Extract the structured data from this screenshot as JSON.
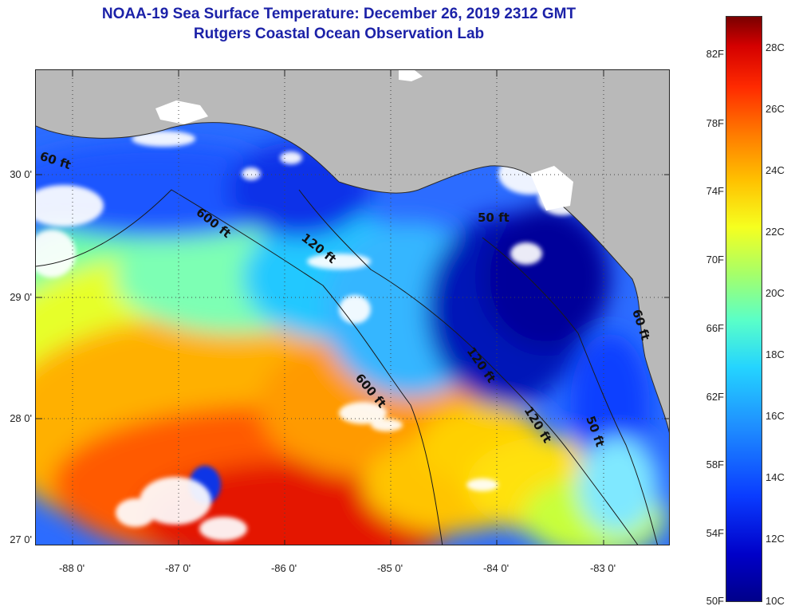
{
  "header": {
    "title_line1": "NOAA-19 Sea Surface Temperature:  December 26, 2019 2312 GMT",
    "title_line2": "Rutgers Coastal Ocean Observation Lab"
  },
  "map": {
    "region": "Gulf of Mexico / Florida Big Bend",
    "lat_ticks": [
      {
        "label": "30 0'",
        "value": 30.0
      },
      {
        "label": "29 0'",
        "value": 29.0
      },
      {
        "label": "28 0'",
        "value": 28.0
      },
      {
        "label": "27 0'",
        "value": 27.0
      }
    ],
    "lon_ticks": [
      {
        "label": "-88 0'",
        "value": -88.0
      },
      {
        "label": "-87 0'",
        "value": -87.0
      },
      {
        "label": "-86 0'",
        "value": -86.0
      },
      {
        "label": "-85 0'",
        "value": -85.0
      },
      {
        "label": "-84 0'",
        "value": -84.0
      },
      {
        "label": "-83 0'",
        "value": -83.0
      }
    ],
    "lat_range": [
      26.97,
      30.9
    ],
    "lon_range": [
      -88.35,
      -82.45
    ],
    "contour_labels": [
      "60 ft",
      "600 ft",
      "120 ft",
      "50 ft",
      "600 ft",
      "120 ft",
      "120 ft",
      "50 ft",
      "60 ft"
    ],
    "colors": {
      "land": "#b9b9b9",
      "cloud": "#ffffff",
      "contour": "#222222"
    }
  },
  "colorbar": {
    "fahrenheit_labels": [
      "82F",
      "78F",
      "74F",
      "70F",
      "66F",
      "62F",
      "58F",
      "54F",
      "50F"
    ],
    "celsius_labels": [
      "28C",
      "26C",
      "24C",
      "22C",
      "20C",
      "18C",
      "16C",
      "14C",
      "12C",
      "10C"
    ],
    "range_c": [
      10,
      29
    ]
  }
}
